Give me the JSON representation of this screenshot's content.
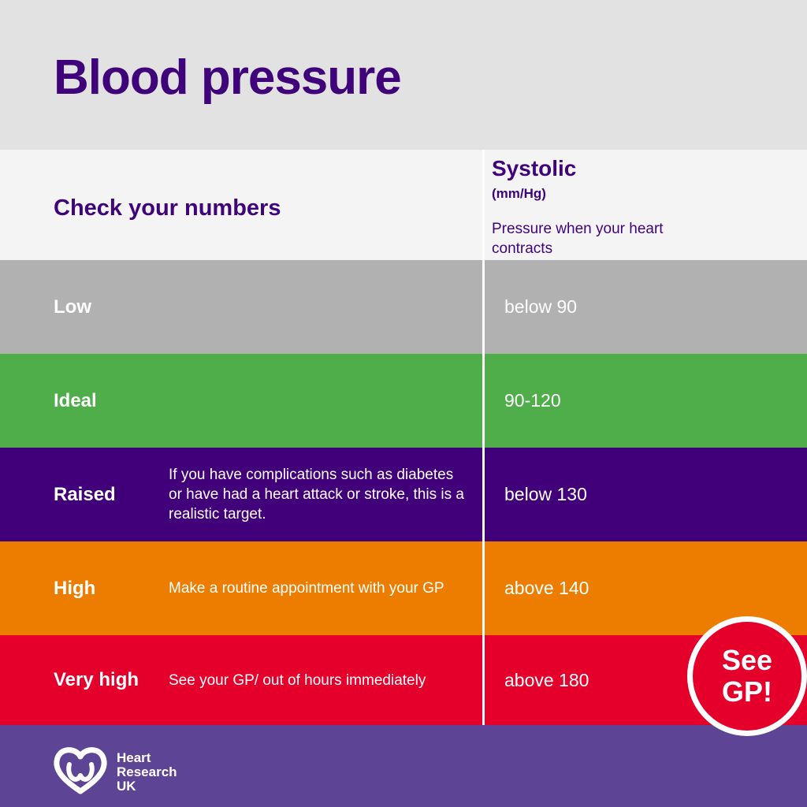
{
  "title": "Blood pressure",
  "header": {
    "check": "Check your numbers",
    "systolic": "Systolic",
    "unit": "(mm/Hg)",
    "description": "Pressure when your heart contracts"
  },
  "colors": {
    "title_band": "#e2e2e2",
    "header": "#f4f4f4",
    "brand_purple": "#40047a",
    "footer": "#5e4494"
  },
  "rows": [
    {
      "label": "Low",
      "note": "",
      "value": "below 90",
      "color": "#b1b1b1"
    },
    {
      "label": "Ideal",
      "note": "",
      "value": "90-120",
      "color": "#4fae4a"
    },
    {
      "label": "Raised",
      "note": "If you have complications such as diabetes or have had a heart attack or stroke, this is a realistic target.",
      "value": "below 130",
      "color": "#41007a"
    },
    {
      "label": "High",
      "note": "Make a routine appointment with your GP",
      "value": "above 140",
      "color": "#ed7d00"
    },
    {
      "label": "Very high",
      "note": "See your GP/ out of hours immediately",
      "value": "above 180",
      "color": "#e4002b"
    }
  ],
  "badge": {
    "line1": "See",
    "line2": "GP!"
  },
  "logo": {
    "icon": "heart-logo-icon",
    "line1": "Heart",
    "line2": "Research",
    "line3": "UK"
  }
}
